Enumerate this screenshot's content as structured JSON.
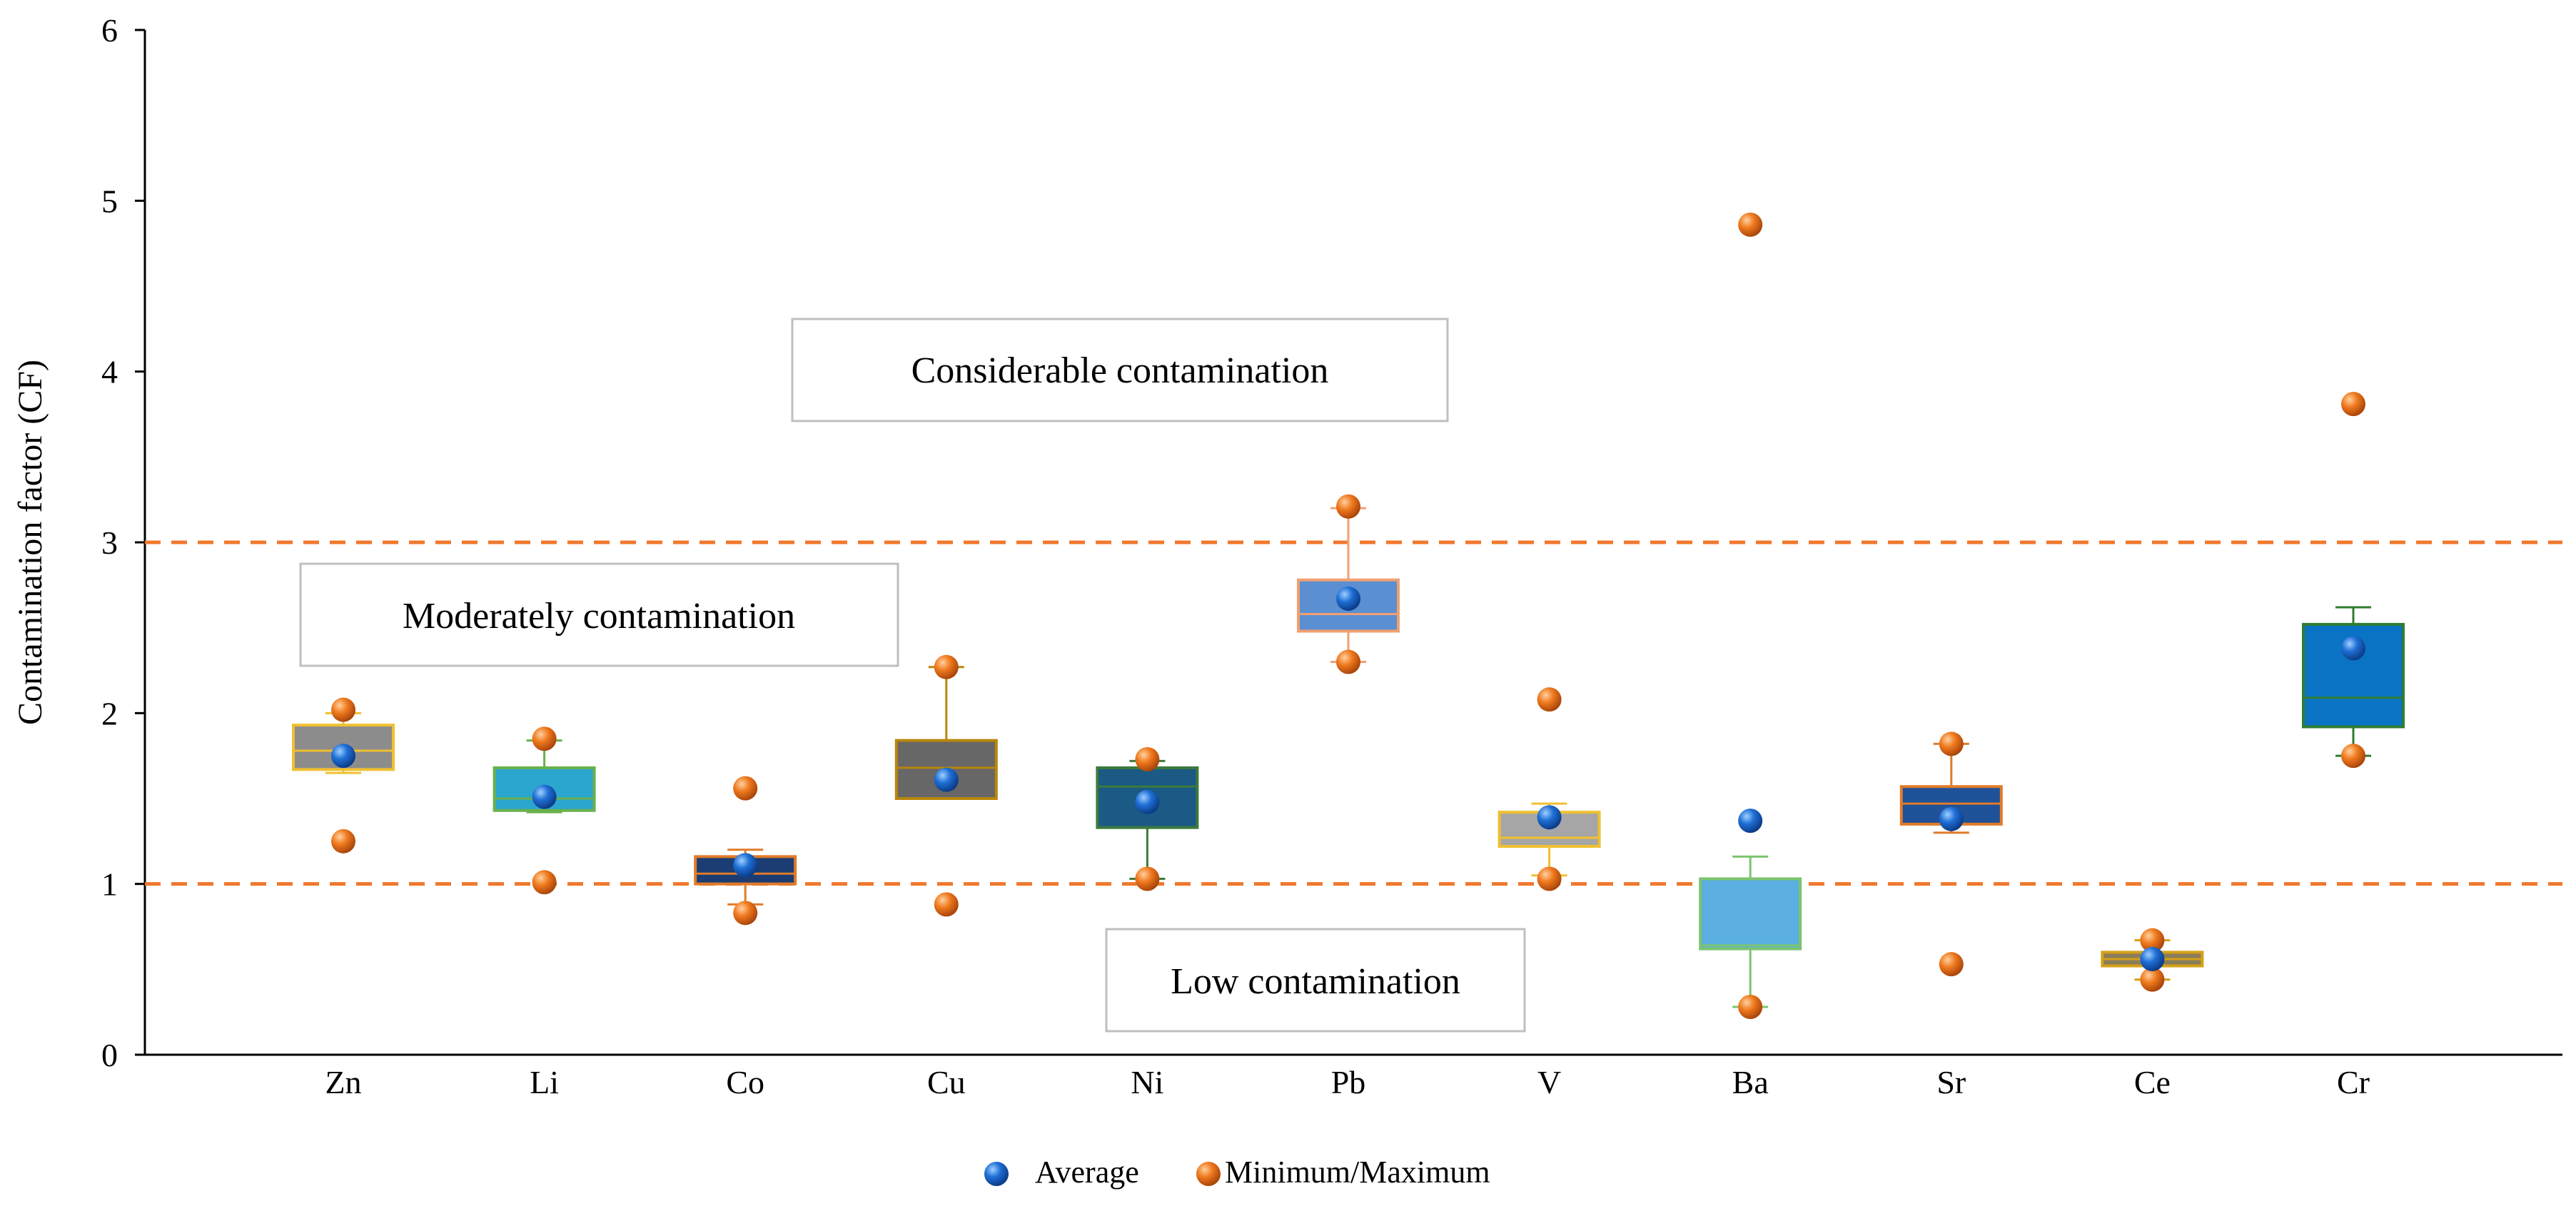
{
  "chart_data": {
    "type": "box",
    "ylabel": "Contamination factor (CF)",
    "xlabel": "",
    "ylim": [
      0,
      6
    ],
    "yticks": [
      0,
      1,
      2,
      3,
      4,
      5,
      6
    ],
    "categories": [
      "Zn",
      "Li",
      "Co",
      "Cu",
      "Ni",
      "Pb",
      "V",
      "Ba",
      "Sr",
      "Ce",
      "Cr"
    ],
    "boxes": [
      {
        "name": "Zn",
        "q1": 1.67,
        "median": 1.78,
        "q3": 1.93,
        "whisker_low": 1.65,
        "whisker_high": 2.0,
        "average": 1.75,
        "min": 1.25,
        "max": 2.02,
        "fill": "#8c8c8c",
        "edge": "#f0c030"
      },
      {
        "name": "Li",
        "q1": 1.43,
        "median": 1.5,
        "q3": 1.68,
        "whisker_low": 1.42,
        "whisker_high": 1.84,
        "average": 1.51,
        "min": 1.01,
        "max": 1.85,
        "fill": "#2aa6cf",
        "edge": "#6ab04c"
      },
      {
        "name": "Co",
        "q1": 1.0,
        "median": 1.06,
        "q3": 1.16,
        "whisker_low": 0.88,
        "whisker_high": 1.2,
        "average": 1.11,
        "min": 0.83,
        "max": 1.56,
        "fill": "#1b3d73",
        "edge": "#e07b2a"
      },
      {
        "name": "Cu",
        "q1": 1.5,
        "median": 1.68,
        "q3": 1.84,
        "whisker_low": 1.5,
        "whisker_high": 2.27,
        "average": 1.61,
        "min": 0.88,
        "max": 2.27,
        "fill": "#676767",
        "edge": "#b8860b"
      },
      {
        "name": "Ni",
        "q1": 1.33,
        "median": 1.57,
        "q3": 1.68,
        "whisker_low": 1.03,
        "whisker_high": 1.72,
        "average": 1.48,
        "min": 1.03,
        "max": 1.73,
        "fill": "#1a5a84",
        "edge": "#3d7a3d"
      },
      {
        "name": "Pb",
        "q1": 2.48,
        "median": 2.58,
        "q3": 2.78,
        "whisker_low": 2.3,
        "whisker_high": 3.2,
        "average": 2.67,
        "min": 2.3,
        "max": 3.21,
        "fill": "#5b8fd1",
        "edge": "#f2a070"
      },
      {
        "name": "V",
        "q1": 1.22,
        "median": 1.27,
        "q3": 1.42,
        "whisker_low": 1.05,
        "whisker_high": 1.47,
        "average": 1.39,
        "min": 1.03,
        "max": 2.08,
        "fill": "#a6a6a6",
        "edge": "#f0c030"
      },
      {
        "name": "Ba",
        "q1": 0.62,
        "median": 0.64,
        "q3": 1.03,
        "whisker_low": 0.28,
        "whisker_high": 1.16,
        "average": 1.37,
        "min": 0.28,
        "max": 4.86,
        "fill": "#5aaee0",
        "edge": "#7cc46e"
      },
      {
        "name": "Sr",
        "q1": 1.35,
        "median": 1.47,
        "q3": 1.57,
        "whisker_low": 1.3,
        "whisker_high": 1.82,
        "average": 1.38,
        "min": 0.53,
        "max": 1.82,
        "fill": "#1f5298",
        "edge": "#e07b2a"
      },
      {
        "name": "Ce",
        "q1": 0.52,
        "median": 0.56,
        "q3": 0.6,
        "whisker_low": 0.44,
        "whisker_high": 0.67,
        "average": 0.56,
        "min": 0.44,
        "max": 0.67,
        "fill": "#8b7d5a",
        "edge": "#d4a017"
      },
      {
        "name": "Cr",
        "q1": 1.92,
        "median": 2.09,
        "q3": 2.52,
        "whisker_low": 1.75,
        "whisker_high": 2.62,
        "average": 2.38,
        "min": 1.75,
        "max": 3.81,
        "fill": "#0a73c4",
        "edge": "#2e7d32"
      }
    ],
    "thresholds": [
      {
        "value": 1,
        "color": "#f0782d"
      },
      {
        "value": 3,
        "color": "#f0782d"
      }
    ],
    "annotations": [
      {
        "text": "Considerable contamination",
        "y": 3.98
      },
      {
        "text": "Moderately contamination",
        "y": 2.58
      },
      {
        "text": "Low contamination",
        "y": 0.42
      }
    ],
    "legend": [
      {
        "label": "Average",
        "color": "#1f6fd6"
      },
      {
        "label": "Minimum/Maximum",
        "color": "#f07a1e"
      }
    ],
    "legend_position": "bottom-center"
  }
}
